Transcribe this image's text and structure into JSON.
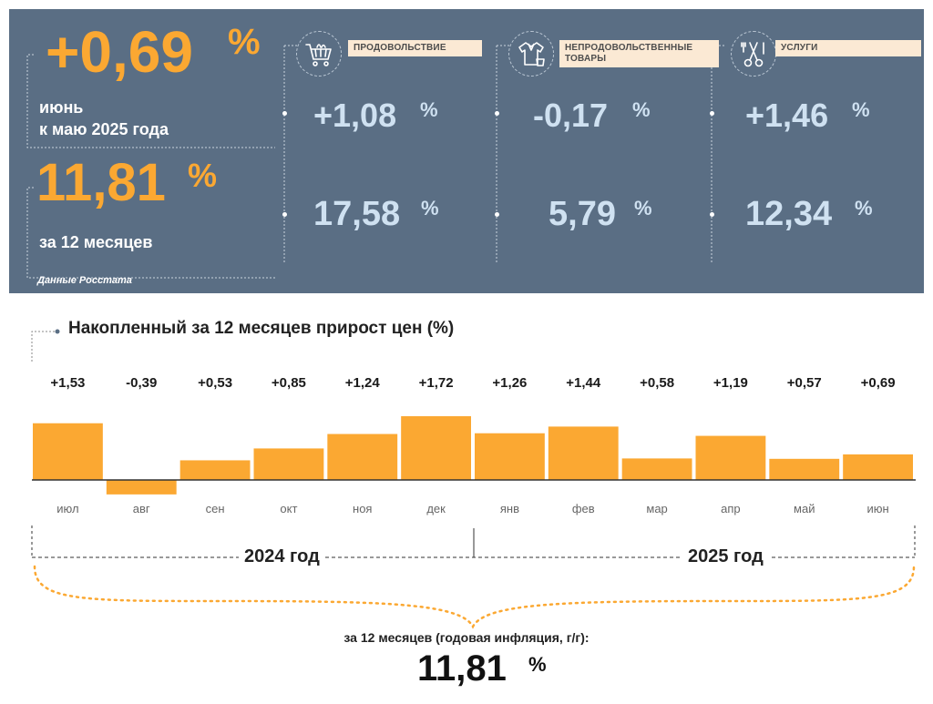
{
  "header": {
    "monthly": {
      "value": "+0,69",
      "pct": "%",
      "caption_line1": "июнь",
      "caption_line2": "к маю 2025 года"
    },
    "annual": {
      "value": "11,81",
      "pct": "%",
      "caption": "за 12 месяцев"
    },
    "source": "Данные Росстата",
    "categories": [
      {
        "name_line1": "ПРОДОВОЛЬСТВИЕ",
        "name_line2": "",
        "icon": "shopping-cart-icon",
        "monthly": "+1,08",
        "annual": "17,58",
        "pct": "%"
      },
      {
        "name_line1": "НЕПРОДОВОЛЬСТВЕННЫЕ",
        "name_line2": "ТОВАРЫ",
        "icon": "clothes-icon",
        "monthly": "-0,17",
        "annual": "5,79",
        "pct": "%"
      },
      {
        "name_line1": "УСЛУГИ",
        "name_line2": "",
        "icon": "scissors-icon",
        "monthly": "+1,46",
        "annual": "12,34",
        "pct": "%"
      }
    ],
    "colors": {
      "panel_bg": "#5a6e84",
      "accent_orange": "#fba832",
      "light_blue": "#cfe1f1",
      "label_bg": "#fbe9d4"
    }
  },
  "chart": {
    "title": "Накопленный за 12 месяцев прирост цен (%)",
    "year_labels": [
      "2024 год",
      "2025 год"
    ],
    "annual_caption": "за 12 месяцев (годовая инфляция, г/г):",
    "annual_value": "11,81",
    "annual_pct": "%"
  },
  "chart_data": {
    "type": "bar",
    "title": "Накопленный за 12 месяцев прирост цен (%)",
    "categories": [
      "июл",
      "авг",
      "сен",
      "окт",
      "ноя",
      "дек",
      "янв",
      "фев",
      "мар",
      "апр",
      "май",
      "июн"
    ],
    "values": [
      1.53,
      -0.39,
      0.53,
      0.85,
      1.24,
      1.72,
      1.26,
      1.44,
      0.58,
      1.19,
      0.57,
      0.69
    ],
    "value_labels": [
      "+1,53",
      "-0,39",
      "+0,53",
      "+0,85",
      "+1,24",
      "+1,72",
      "+1,26",
      "+1,44",
      "+0,58",
      "+1,19",
      "+0,57",
      "+0,69"
    ],
    "bar_color": "#fba832",
    "xlabel": "",
    "ylabel": "",
    "grid": false
  }
}
